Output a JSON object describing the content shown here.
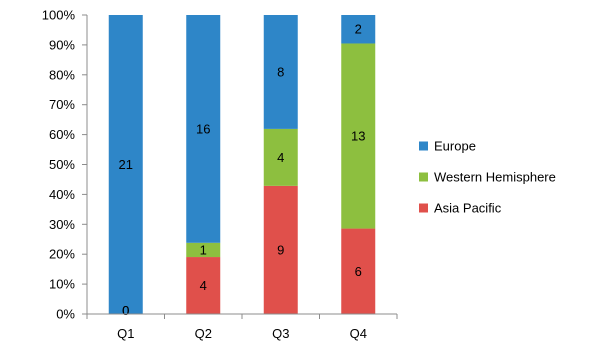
{
  "chart_data": {
    "type": "bar",
    "stacked": "percent",
    "title": "",
    "xlabel": "",
    "ylabel": "",
    "categories": [
      "Q1",
      "Q2",
      "Q3",
      "Q4"
    ],
    "series": [
      {
        "name": "Asia Pacific",
        "values": [
          0,
          4,
          9,
          6
        ],
        "color": "#E0504B"
      },
      {
        "name": "Western Hemisphere",
        "values": [
          0,
          1,
          4,
          13
        ],
        "color": "#8DBF3F"
      },
      {
        "name": "Europe",
        "values": [
          21,
          16,
          8,
          2
        ],
        "color": "#2E86C8"
      }
    ],
    "y_ticks": [
      "0%",
      "10%",
      "20%",
      "30%",
      "40%",
      "50%",
      "60%",
      "70%",
      "80%",
      "90%",
      "100%"
    ],
    "ylim": [
      0,
      100
    ],
    "grid": false,
    "legend": {
      "position": "right",
      "entries": [
        "Europe",
        "Western Hemisphere",
        "Asia Pacific"
      ]
    }
  }
}
